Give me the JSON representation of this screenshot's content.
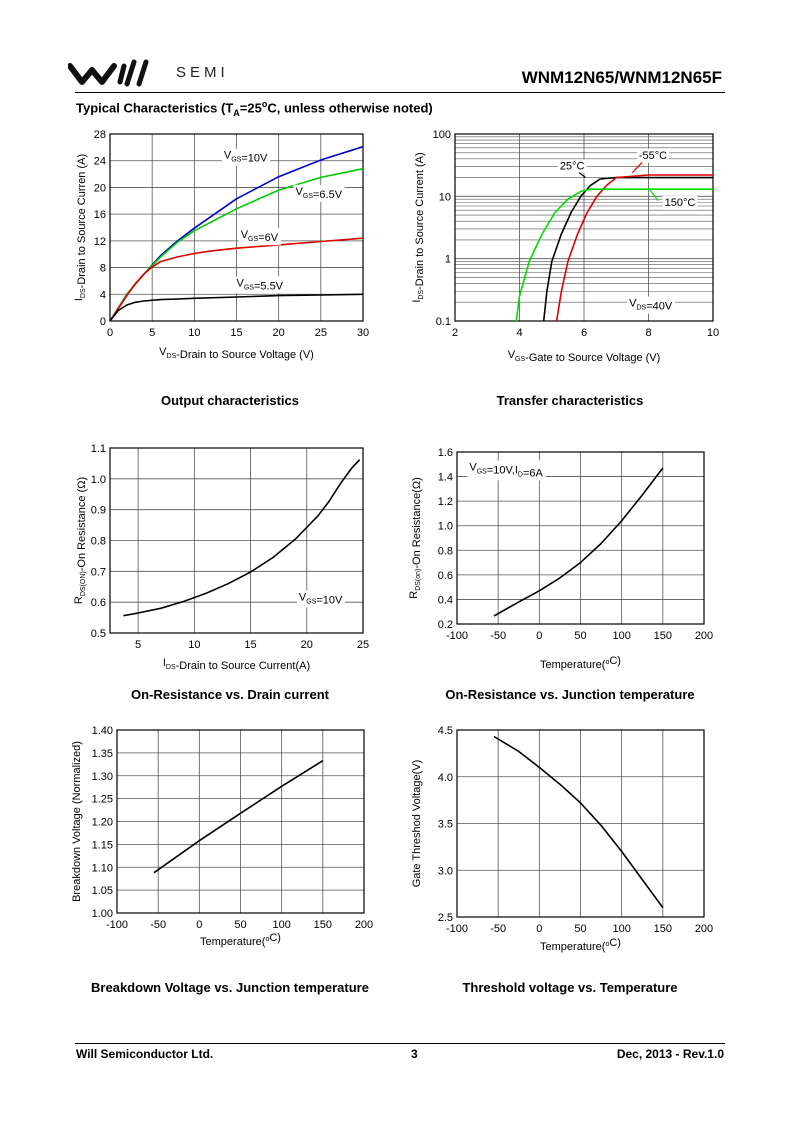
{
  "header": {
    "logo_semi": "SEMI",
    "part_number": "WNM12N65/WNM12N65F"
  },
  "section_title": {
    "prefix": "Typical Characteristics (T",
    "sub": "A",
    "suffix": "=25",
    "deg": "o",
    "tail": "C, unless otherwise noted)"
  },
  "footer": {
    "company": "Will Semiconductor Ltd.",
    "page": "3",
    "revision": "Dec, 2013 - Rev.1.0"
  },
  "chart_data": [
    {
      "id": "output",
      "type": "line",
      "title": "Output characteristics",
      "xlabel": {
        "main": "V",
        "sub": "DS",
        "rest": "-Drain to Source Voltage (V)"
      },
      "ylabel": {
        "main": "I",
        "sub": "DS",
        "rest": "-Drain to Source Curren (A)"
      },
      "xlim": [
        0,
        30
      ],
      "ylim": [
        0,
        28
      ],
      "xticks": [
        0,
        5,
        10,
        15,
        20,
        25,
        30
      ],
      "yticks": [
        0,
        4,
        8,
        12,
        16,
        20,
        24,
        28
      ],
      "grid": true,
      "series": [
        {
          "name": "VGS=10V",
          "color": "#0000cc",
          "x": [
            0,
            2,
            4,
            6,
            8,
            10,
            15,
            20,
            25,
            30
          ],
          "y": [
            0,
            4,
            7,
            9.8,
            12,
            13.9,
            18.3,
            21.6,
            24.1,
            26.1
          ]
        },
        {
          "name": "VGS=6.5V",
          "color": "#00cc00",
          "x": [
            0,
            2,
            4,
            6,
            8,
            10,
            15,
            20,
            25,
            30
          ],
          "y": [
            0,
            4,
            7,
            9.6,
            11.8,
            13.5,
            16.8,
            19.6,
            21.5,
            22.8
          ]
        },
        {
          "name": "VGS=6V",
          "color": "#dd0000",
          "x": [
            0,
            2,
            3,
            4,
            5,
            6,
            8,
            10,
            12,
            15,
            20,
            25,
            30
          ],
          "y": [
            0,
            3.8,
            5.6,
            7,
            8.1,
            8.9,
            9.6,
            10.1,
            10.5,
            10.9,
            11.4,
            11.9,
            12.4
          ]
        },
        {
          "name": "VGS=5.5V",
          "color": "#000000",
          "x": [
            0,
            1,
            2,
            3,
            4,
            6,
            8,
            10,
            15,
            20,
            25,
            30
          ],
          "y": [
            0,
            1.6,
            2.4,
            2.8,
            3,
            3.2,
            3.3,
            3.4,
            3.6,
            3.8,
            3.9,
            4
          ]
        }
      ],
      "annotations": [
        {
          "main": "V",
          "sub": "GS",
          "rest": "=10V",
          "x": 13.5,
          "y": 24.3
        },
        {
          "main": "V",
          "sub": "GS",
          "rest": "=6.5V",
          "x": 22,
          "y": 18.9
        },
        {
          "main": "V",
          "sub": "GS",
          "rest": "=6V",
          "x": 15.5,
          "y": 12.4
        },
        {
          "main": "V",
          "sub": "GS",
          "rest": "=5.5V",
          "x": 15,
          "y": 5.2
        }
      ]
    },
    {
      "id": "transfer",
      "type": "line",
      "title": "Transfer characteristics",
      "xlabel": {
        "main": "V",
        "sub": "GS",
        "rest": "-Gate to Source Voltage (V)"
      },
      "ylabel": {
        "main": "I",
        "sub": "DS",
        "rest": "-Drain to Source Current (A)"
      },
      "xlim": [
        2,
        10
      ],
      "ylim": [
        0.1,
        100
      ],
      "yscale": "log",
      "xticks": [
        2,
        4,
        6,
        8,
        10
      ],
      "yticks": [
        0.1,
        1,
        10,
        100
      ],
      "yticklabels": [
        "0.1",
        "1",
        "10",
        "100"
      ],
      "grid": true,
      "series": [
        {
          "name": "25°C",
          "color": "#000000",
          "x": [
            4.75,
            4.85,
            5,
            5.3,
            5.6,
            5.9,
            6.2,
            6.5,
            7,
            10
          ],
          "y": [
            0.1,
            0.3,
            0.9,
            2.5,
            5.5,
            10,
            15,
            19,
            20,
            20
          ]
        },
        {
          "name": "-55°C",
          "color": "#dd0000",
          "x": [
            5.15,
            5.3,
            5.5,
            5.8,
            6.1,
            6.4,
            6.7,
            7,
            8,
            10
          ],
          "y": [
            0.1,
            0.3,
            0.9,
            2.5,
            5.5,
            10,
            15,
            20,
            22,
            22
          ]
        },
        {
          "name": "150°C",
          "color": "#00dd00",
          "x": [
            3.9,
            4,
            4.3,
            4.7,
            5.1,
            5.5,
            5.9,
            6.2,
            10
          ],
          "y": [
            0.1,
            0.25,
            0.9,
            2.5,
            5.5,
            9,
            12,
            13,
            13
          ]
        }
      ],
      "annotations": [
        {
          "main": "25°C",
          "x": 5.25,
          "y": 27
        },
        {
          "main": "-55°C",
          "x": 7.7,
          "y": 40
        },
        {
          "main": "150°C",
          "x": 8.5,
          "y": 7
        },
        {
          "main": "V",
          "sub": "DS",
          "rest": "=40V",
          "x": 7.4,
          "y": 0.17
        }
      ]
    },
    {
      "id": "ron_id",
      "type": "line",
      "title": "On-Resistance vs. Drain current",
      "xlabel": {
        "main": "I",
        "sub": "DS",
        "rest": "-Drain to Source Current(A)"
      },
      "ylabel": {
        "main": "R",
        "sub": "DS(ON)",
        "rest": "-On Resistance (Ω)"
      },
      "xlim": [
        2.5,
        25
      ],
      "ylim": [
        0.5,
        1.1
      ],
      "xticks": [
        5,
        10,
        15,
        20,
        25
      ],
      "yticks": [
        0.5,
        0.6,
        0.7,
        0.8,
        0.9,
        1.0,
        1.1
      ],
      "yticklabels": [
        "0.5",
        "0.6",
        "0.7",
        "0.8",
        "0.9",
        "1.0",
        "1.1"
      ],
      "grid": true,
      "series": [
        {
          "name": "RDS(ON)",
          "color": "#000000",
          "x": [
            3.7,
            5,
            7,
            9,
            11,
            13,
            15,
            17,
            19,
            21,
            22,
            23,
            24,
            24.7
          ],
          "y": [
            0.556,
            0.565,
            0.58,
            0.602,
            0.628,
            0.66,
            0.698,
            0.745,
            0.805,
            0.88,
            0.928,
            0.985,
            1.035,
            1.062
          ]
        }
      ],
      "annotations": [
        {
          "main": "V",
          "sub": "GS",
          "rest": "=10V",
          "x": 19.3,
          "y": 0.605
        }
      ]
    },
    {
      "id": "ron_tj",
      "type": "line",
      "title": "On-Resistance vs. Junction temperature",
      "xlabel": {
        "main": "Temperature(",
        "rest": "C)",
        "deg": true
      },
      "ylabel": {
        "main": "R",
        "sub": "DS(on)",
        "rest": "-On Resistance(Ω)"
      },
      "xlim": [
        -100,
        200
      ],
      "ylim": [
        0.2,
        1.6
      ],
      "xticks": [
        -100,
        -50,
        0,
        50,
        100,
        150,
        200
      ],
      "yticks": [
        0.2,
        0.4,
        0.6,
        0.8,
        1.0,
        1.2,
        1.4,
        1.6
      ],
      "yticklabels": [
        "0.2",
        "0.4",
        "0.6",
        "0.8",
        "1.0",
        "1.2",
        "1.4",
        "1.6"
      ],
      "grid": true,
      "series": [
        {
          "name": "RDS(on)",
          "color": "#000000",
          "x": [
            -55,
            -25,
            0,
            25,
            50,
            75,
            100,
            125,
            150
          ],
          "y": [
            0.265,
            0.38,
            0.47,
            0.575,
            0.7,
            0.855,
            1.04,
            1.25,
            1.47
          ]
        }
      ],
      "annotations": [
        {
          "main": "V",
          "sub": "GS",
          "rest": "=10V,I",
          "sub2": "D",
          "rest2": "=6A",
          "x": -85,
          "y": 1.45
        }
      ]
    },
    {
      "id": "bv_tj",
      "type": "line",
      "title": "Breakdown Voltage vs. Junction temperature",
      "xlabel": {
        "main": "Temperature(",
        "rest": "C)",
        "deg": true
      },
      "ylabel": {
        "main": "Breakdown Voltage (Normalized)"
      },
      "xlim": [
        -100,
        200
      ],
      "ylim": [
        1.0,
        1.4
      ],
      "xticks": [
        -100,
        -50,
        0,
        50,
        100,
        150,
        200
      ],
      "yticks": [
        1.0,
        1.05,
        1.1,
        1.15,
        1.2,
        1.25,
        1.3,
        1.35,
        1.4
      ],
      "yticklabels": [
        "1.00",
        "1.05",
        "1.10",
        "1.15",
        "1.20",
        "1.25",
        "1.30",
        "1.35",
        "1.40"
      ],
      "grid": true,
      "series": [
        {
          "name": "BV",
          "color": "#000000",
          "x": [
            -55,
            0,
            50,
            100,
            150
          ],
          "y": [
            1.088,
            1.158,
            1.218,
            1.277,
            1.333
          ]
        }
      ],
      "annotations": []
    },
    {
      "id": "vth_t",
      "type": "line",
      "title": "Threshold voltage vs. Temperature",
      "xlabel": {
        "main": "Temperature(",
        "rest": "C)",
        "deg": true
      },
      "ylabel": {
        "main": "Gate Threshod Voltage(V)"
      },
      "xlim": [
        -100,
        200
      ],
      "ylim": [
        2.5,
        4.5
      ],
      "xticks": [
        -100,
        -50,
        0,
        50,
        100,
        150,
        200
      ],
      "yticks": [
        2.5,
        3.0,
        3.5,
        4.0,
        4.5
      ],
      "yticklabels": [
        "2.5",
        "3.0",
        "3.5",
        "4.0",
        "4.5"
      ],
      "grid": true,
      "series": [
        {
          "name": "Vth",
          "color": "#000000",
          "x": [
            -55,
            -25,
            0,
            25,
            50,
            75,
            100,
            125,
            150
          ],
          "y": [
            4.43,
            4.27,
            4.1,
            3.92,
            3.72,
            3.48,
            3.2,
            2.9,
            2.6
          ]
        }
      ],
      "annotations": []
    }
  ]
}
